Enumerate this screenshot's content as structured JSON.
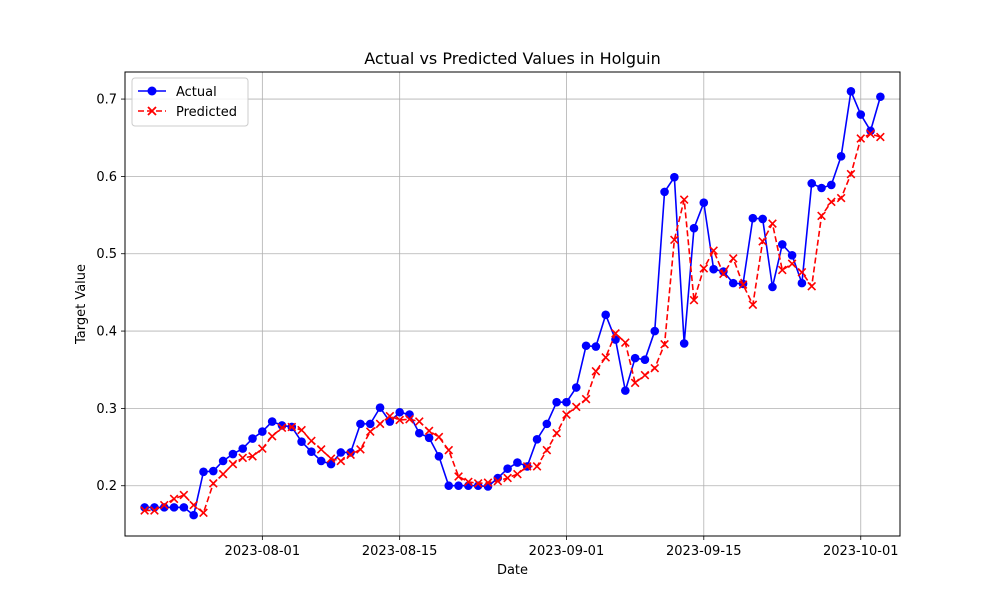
{
  "chart_data": {
    "type": "line",
    "title": "Actual vs Predicted Values in Holguin",
    "xlabel": "Date",
    "ylabel": "Target Value",
    "x_start": "2023-07-20",
    "x_tick_labels": [
      "2023-08-01",
      "2023-08-15",
      "2023-09-01",
      "2023-09-15",
      "2023-10-01"
    ],
    "xlim": [
      "2023-07-18",
      "2023-10-05"
    ],
    "y_tick_labels": [
      "0.2",
      "0.3",
      "0.4",
      "0.5",
      "0.6",
      "0.7"
    ],
    "y_ticks": [
      0.2,
      0.3,
      0.4,
      0.5,
      0.6,
      0.7
    ],
    "ylim": [
      0.135,
      0.735
    ],
    "grid": true,
    "legend_position": "upper-left",
    "series": [
      {
        "name": "Actual",
        "color": "#0000ff",
        "line_style": "solid",
        "marker": "circle",
        "values": [
          0.172,
          0.172,
          0.172,
          0.172,
          0.172,
          0.162,
          0.218,
          0.219,
          0.232,
          0.241,
          0.248,
          0.261,
          0.27,
          0.283,
          0.278,
          0.276,
          0.257,
          0.244,
          0.232,
          0.228,
          0.243,
          0.243,
          0.28,
          0.28,
          0.301,
          0.283,
          0.295,
          0.292,
          0.268,
          0.262,
          0.238,
          0.2,
          0.2,
          0.2,
          0.2,
          0.199,
          0.21,
          0.222,
          0.23,
          0.225,
          0.26,
          0.28,
          0.308,
          0.308,
          0.327,
          0.381,
          0.38,
          0.421,
          0.389,
          0.323,
          0.365,
          0.363,
          0.4,
          0.58,
          0.599,
          0.384,
          0.533,
          0.566,
          0.48,
          0.477,
          0.462,
          0.461,
          0.546,
          0.545,
          0.457,
          0.512,
          0.498,
          0.462,
          0.591,
          0.585,
          0.589,
          0.626,
          0.71,
          0.68,
          0.659,
          0.703
        ]
      },
      {
        "name": "Predicted",
        "color": "#ff0000",
        "line_style": "dashed",
        "marker": "x",
        "values": [
          0.168,
          0.168,
          0.175,
          0.183,
          0.188,
          0.175,
          0.165,
          0.203,
          0.215,
          0.228,
          0.236,
          0.238,
          0.248,
          0.264,
          0.275,
          0.276,
          0.272,
          0.258,
          0.247,
          0.235,
          0.232,
          0.24,
          0.247,
          0.27,
          0.28,
          0.29,
          0.285,
          0.286,
          0.283,
          0.271,
          0.263,
          0.246,
          0.212,
          0.205,
          0.203,
          0.204,
          0.206,
          0.21,
          0.215,
          0.225,
          0.225,
          0.246,
          0.268,
          0.292,
          0.302,
          0.312,
          0.348,
          0.366,
          0.397,
          0.385,
          0.333,
          0.343,
          0.352,
          0.383,
          0.518,
          0.57,
          0.44,
          0.481,
          0.504,
          0.474,
          0.494,
          0.46,
          0.434,
          0.516,
          0.539,
          0.479,
          0.487,
          0.476,
          0.458,
          0.549,
          0.567,
          0.572,
          0.603,
          0.649,
          0.655,
          0.651
        ]
      }
    ]
  }
}
